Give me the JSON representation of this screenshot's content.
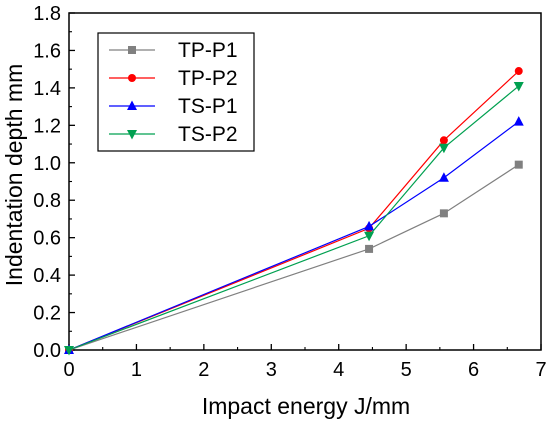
{
  "chart_data": {
    "type": "line",
    "title": "",
    "xlabel": "Impact energy  J/mm",
    "ylabel": "Indentation depth  mm",
    "xlim": [
      0,
      7
    ],
    "ylim": [
      0,
      1.8
    ],
    "x_ticks": [
      "0",
      "1",
      "2",
      "3",
      "4",
      "5",
      "6",
      "7"
    ],
    "y_ticks": [
      "0.0",
      "0.2",
      "0.4",
      "0.6",
      "0.8",
      "1.0",
      "1.2",
      "1.4",
      "1.6",
      "1.8"
    ],
    "grid": false,
    "legend_position": "top-left",
    "series": [
      {
        "name": "TP-P1",
        "color": "#808080",
        "marker": "square",
        "x": [
          0,
          4.45,
          5.56,
          6.67
        ],
        "y": [
          0,
          0.54,
          0.73,
          0.99
        ]
      },
      {
        "name": "TP-P2",
        "color": "#ff0000",
        "marker": "circle",
        "x": [
          0,
          4.45,
          5.56,
          6.67
        ],
        "y": [
          0,
          0.65,
          1.12,
          1.49
        ]
      },
      {
        "name": "TS-P1",
        "color": "#0000ff",
        "marker": "triangle-up",
        "x": [
          0,
          4.45,
          5.56,
          6.67
        ],
        "y": [
          0,
          0.66,
          0.92,
          1.22
        ]
      },
      {
        "name": "TS-P2",
        "color": "#00a050",
        "marker": "triangle-down",
        "x": [
          0,
          4.45,
          5.56,
          6.67
        ],
        "y": [
          0,
          0.61,
          1.08,
          1.41
        ]
      }
    ]
  }
}
